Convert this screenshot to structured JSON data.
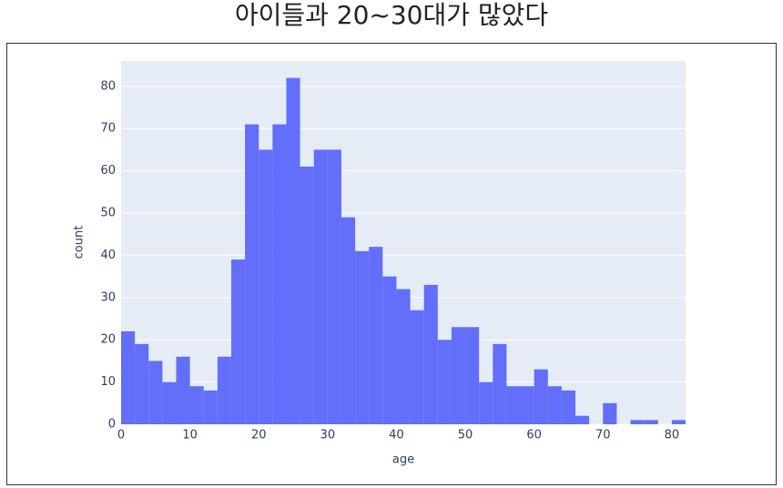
{
  "chart_data": {
    "type": "histogram",
    "title": "아이들과 20~30대가 많았다",
    "x_label": "age",
    "y_label": "count",
    "bins": [
      0,
      2,
      4,
      6,
      8,
      10,
      12,
      14,
      16,
      18,
      20,
      22,
      24,
      26,
      28,
      30,
      32,
      34,
      36,
      38,
      40,
      42,
      44,
      46,
      48,
      50,
      52,
      54,
      56,
      58,
      60,
      62,
      64,
      66,
      68,
      70,
      72,
      74,
      76,
      78,
      80,
      82
    ],
    "counts": [
      22,
      19,
      15,
      10,
      16,
      9,
      8,
      16,
      39,
      71,
      65,
      71,
      82,
      61,
      65,
      65,
      49,
      41,
      42,
      35,
      32,
      27,
      33,
      20,
      23,
      23,
      10,
      19,
      9,
      9,
      13,
      9,
      8,
      2,
      0,
      5,
      0,
      1,
      1,
      0,
      1
    ],
    "color": "#636efa",
    "xlim": [
      0,
      82
    ],
    "xticks": [
      0,
      10,
      20,
      30,
      40,
      50,
      60,
      70,
      80
    ],
    "ylim": [
      0,
      86
    ],
    "yticks": [
      0,
      10,
      20,
      30,
      40,
      50,
      60,
      70,
      80
    ],
    "grid": true
  }
}
